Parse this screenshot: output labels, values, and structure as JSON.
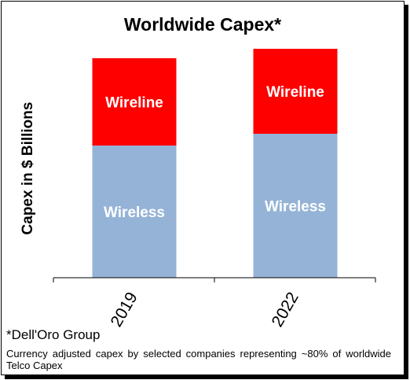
{
  "chart_data": {
    "type": "bar",
    "stacked": true,
    "title": "Worldwide Capex*",
    "ylabel": "Capex in $ Billions",
    "xlabel": "",
    "categories": [
      "2019",
      "2022"
    ],
    "series": [
      {
        "name": "Wireless",
        "values": [
          56,
          61
        ],
        "color": "#95b3d7",
        "text_color": "#ffffff"
      },
      {
        "name": "Wireline",
        "values": [
          37,
          36
        ],
        "color": "#ff0000",
        "text_color": "#ffffff"
      }
    ],
    "ylim": [
      0,
      100
    ],
    "y_axis_line": false,
    "grid": false,
    "legend": "none",
    "x_tick_rotation_deg": -60
  },
  "source": "*Dell'Oro Group",
  "footnote": "Currency adjusted capex by selected companies representing  ~80% of worldwide  Telco Capex"
}
